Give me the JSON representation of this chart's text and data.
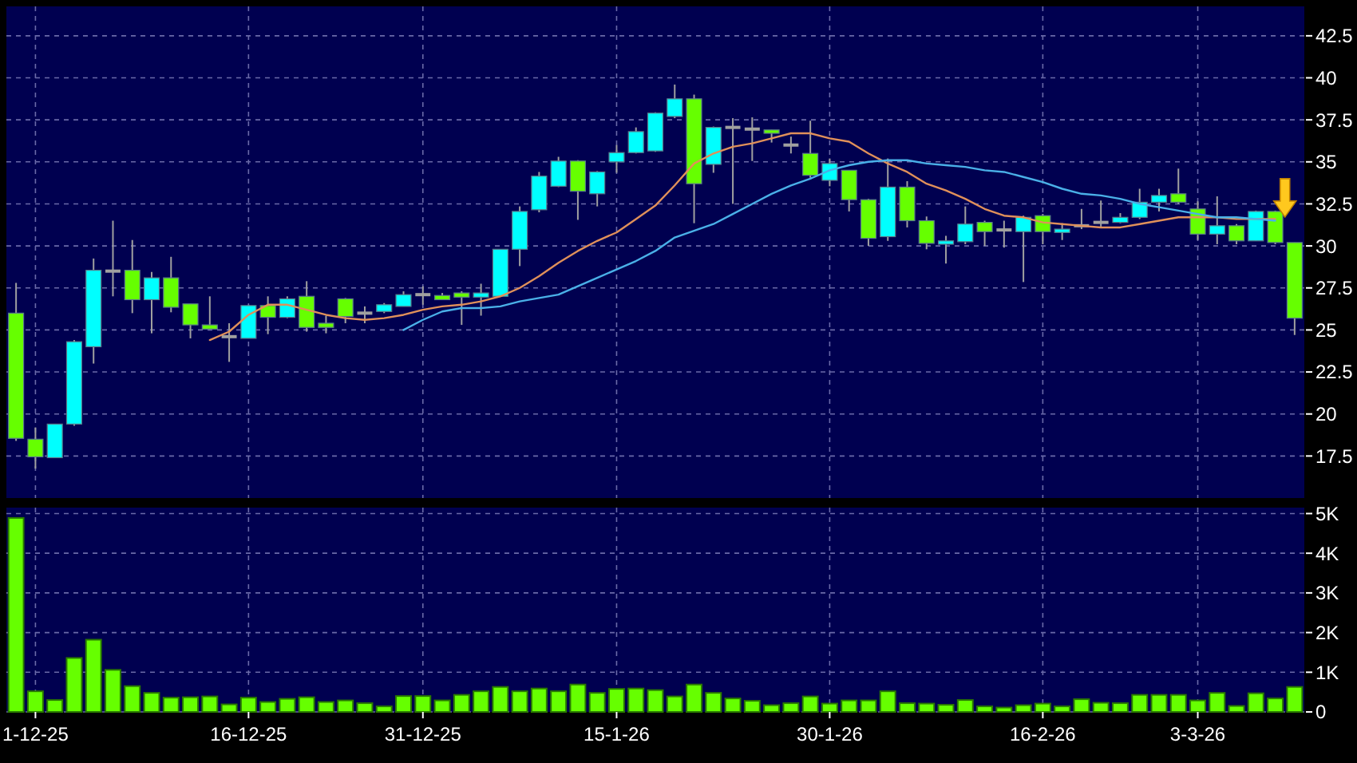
{
  "chart_data": [
    {
      "type": "candlestick",
      "categories": [
        null,
        null,
        null,
        null,
        null,
        null,
        null,
        null,
        null,
        null,
        null,
        null,
        null,
        null,
        null,
        null,
        null,
        null,
        null,
        null,
        null,
        null,
        null,
        null,
        null,
        null,
        null,
        null,
        null,
        null,
        null,
        null,
        null,
        null,
        null,
        null,
        null,
        null,
        null,
        null,
        null,
        null,
        null,
        null,
        null,
        null,
        null,
        null,
        null,
        null,
        null,
        null,
        null,
        null,
        null,
        null,
        null,
        null,
        null,
        null,
        null,
        null,
        null,
        null,
        null,
        null,
        null
      ],
      "ohlc": [
        [
          26.0,
          27.8,
          18.4,
          18.55
        ],
        [
          18.5,
          19.2,
          16.75,
          17.45
        ],
        [
          17.4,
          19.4,
          17.4,
          19.4
        ],
        [
          19.4,
          24.4,
          19.3,
          24.3
        ],
        [
          24.0,
          29.25,
          23.0,
          28.55
        ],
        [
          28.5,
          31.5,
          27.0,
          28.5
        ],
        [
          28.55,
          30.35,
          26.0,
          26.8
        ],
        [
          26.8,
          28.45,
          24.8,
          28.1
        ],
        [
          28.1,
          29.35,
          26.05,
          26.35
        ],
        [
          26.55,
          26.55,
          24.5,
          25.3
        ],
        [
          25.3,
          27.0,
          25.0,
          25.05
        ],
        [
          24.6,
          25.4,
          23.1,
          24.6
        ],
        [
          24.5,
          26.5,
          24.5,
          26.45
        ],
        [
          26.45,
          27.0,
          24.75,
          25.75
        ],
        [
          25.75,
          27.0,
          25.7,
          26.85
        ],
        [
          27.0,
          27.9,
          24.9,
          25.15
        ],
        [
          25.4,
          25.85,
          24.8,
          25.15
        ],
        [
          26.85,
          26.9,
          25.4,
          25.8
        ],
        [
          26.0,
          26.4,
          25.4,
          26.0
        ],
        [
          26.1,
          26.6,
          26.0,
          26.5
        ],
        [
          26.4,
          27.3,
          26.4,
          27.1
        ],
        [
          27.1,
          27.6,
          26.5,
          27.1
        ],
        [
          27.05,
          27.2,
          26.8,
          26.8
        ],
        [
          27.2,
          27.3,
          25.3,
          26.95
        ],
        [
          26.95,
          27.75,
          25.85,
          27.2
        ],
        [
          27.0,
          29.8,
          27.0,
          29.8
        ],
        [
          29.8,
          32.35,
          28.8,
          32.05
        ],
        [
          32.15,
          34.4,
          32.0,
          34.15
        ],
        [
          33.55,
          35.3,
          33.5,
          35.05
        ],
        [
          35.05,
          35.1,
          31.55,
          33.25
        ],
        [
          33.1,
          34.45,
          32.35,
          34.4
        ],
        [
          35.0,
          36.0,
          34.35,
          35.55
        ],
        [
          35.55,
          37.05,
          35.5,
          36.8
        ],
        [
          35.65,
          37.95,
          35.6,
          37.9
        ],
        [
          37.7,
          39.6,
          37.6,
          38.75
        ],
        [
          38.75,
          39.0,
          31.35,
          33.7
        ],
        [
          34.85,
          37.1,
          34.35,
          37.05
        ],
        [
          37.05,
          37.6,
          32.5,
          37.05
        ],
        [
          36.95,
          37.65,
          35.05,
          36.95
        ],
        [
          36.9,
          36.9,
          36.15,
          36.7
        ],
        [
          36.0,
          36.5,
          35.5,
          36.0
        ],
        [
          35.5,
          37.45,
          34.05,
          34.2
        ],
        [
          33.9,
          35.2,
          33.55,
          34.9
        ],
        [
          34.5,
          34.5,
          32.05,
          32.75
        ],
        [
          32.75,
          32.8,
          30.0,
          30.45
        ],
        [
          30.55,
          35.2,
          30.3,
          33.5
        ],
        [
          33.5,
          33.85,
          31.1,
          31.5
        ],
        [
          31.5,
          31.75,
          29.8,
          30.15
        ],
        [
          30.1,
          30.6,
          28.95,
          30.3
        ],
        [
          30.25,
          32.35,
          30.1,
          31.3
        ],
        [
          31.4,
          31.5,
          30.0,
          30.85
        ],
        [
          30.95,
          31.5,
          29.9,
          30.95
        ],
        [
          30.85,
          31.8,
          27.85,
          31.7
        ],
        [
          31.8,
          31.9,
          30.1,
          30.85
        ],
        [
          30.8,
          31.35,
          30.35,
          31.0
        ],
        [
          31.2,
          32.2,
          31.0,
          31.2
        ],
        [
          31.4,
          32.7,
          31.1,
          31.4
        ],
        [
          31.4,
          31.95,
          31.35,
          31.7
        ],
        [
          31.7,
          33.4,
          31.6,
          32.6
        ],
        [
          32.6,
          33.4,
          32.05,
          33.0
        ],
        [
          33.1,
          34.6,
          32.5,
          32.6
        ],
        [
          32.2,
          32.65,
          30.35,
          30.7
        ],
        [
          30.7,
          32.95,
          30.1,
          31.2
        ],
        [
          31.2,
          31.3,
          30.1,
          30.3
        ],
        [
          30.3,
          32.1,
          30.3,
          32.05
        ],
        [
          32.05,
          32.1,
          30.1,
          30.2
        ],
        [
          30.2,
          30.2,
          24.7,
          25.7
        ]
      ],
      "colors": [
        "#66ff00",
        "#66ff00",
        "#00ffff",
        "#00ffff",
        "#00ffff",
        "#a0a0a0",
        "#66ff00",
        "#00ffff",
        "#66ff00",
        "#66ff00",
        "#66ff00",
        "#a0a0a0",
        "#00ffff",
        "#66ff00",
        "#00ffff",
        "#66ff00",
        "#66ff00",
        "#66ff00",
        "#a0a0a0",
        "#00ffff",
        "#00ffff",
        "#a0a0a0",
        "#66ff00",
        "#66ff00",
        "#00ffff",
        "#00ffff",
        "#00ffff",
        "#00ffff",
        "#00ffff",
        "#66ff00",
        "#00ffff",
        "#00ffff",
        "#00ffff",
        "#00ffff",
        "#00ffff",
        "#66ff00",
        "#00ffff",
        "#a0a0a0",
        "#a0a0a0",
        "#66ff00",
        "#a0a0a0",
        "#66ff00",
        "#00ffff",
        "#66ff00",
        "#66ff00",
        "#00ffff",
        "#66ff00",
        "#66ff00",
        "#00ffff",
        "#00ffff",
        "#66ff00",
        "#a0a0a0",
        "#00ffff",
        "#66ff00",
        "#00ffff",
        "#a0a0a0",
        "#a0a0a0",
        "#00ffff",
        "#00ffff",
        "#00ffff",
        "#66ff00",
        "#66ff00",
        "#00ffff",
        "#66ff00",
        "#00ffff",
        "#66ff00",
        "#66ff00"
      ],
      "series": [
        {
          "type": "line",
          "color": "#e0905a",
          "values": [
            null,
            null,
            null,
            null,
            null,
            null,
            null,
            null,
            null,
            null,
            24.4,
            24.9,
            25.9,
            26.5,
            26.5,
            26.2,
            25.9,
            25.7,
            25.6,
            25.7,
            25.9,
            26.2,
            26.4,
            26.5,
            26.7,
            27.0,
            27.5,
            28.2,
            29.0,
            29.7,
            30.3,
            30.8,
            31.6,
            32.4,
            33.6,
            34.9,
            35.5,
            35.9,
            36.1,
            36.4,
            36.7,
            36.7,
            36.4,
            36.2,
            35.5,
            34.9,
            34.4,
            33.7,
            33.3,
            32.8,
            32.2,
            31.8,
            31.7,
            31.4,
            31.3,
            31.2,
            31.1,
            31.1,
            31.3,
            31.5,
            31.7,
            31.7,
            31.7,
            31.6,
            31.6,
            31.6,
            null
          ]
        },
        {
          "type": "line",
          "color": "#4ab0e8",
          "values": [
            null,
            null,
            null,
            null,
            null,
            null,
            null,
            null,
            null,
            null,
            null,
            null,
            null,
            null,
            null,
            null,
            null,
            null,
            null,
            null,
            25.0,
            25.6,
            26.1,
            26.3,
            26.3,
            26.4,
            26.7,
            26.9,
            27.1,
            27.6,
            28.1,
            28.6,
            29.1,
            29.7,
            30.5,
            30.9,
            31.3,
            31.9,
            32.5,
            33.1,
            33.6,
            34.0,
            34.5,
            34.8,
            35.0,
            35.1,
            35.1,
            34.9,
            34.8,
            34.7,
            34.5,
            34.4,
            34.1,
            33.8,
            33.4,
            33.1,
            33.0,
            32.8,
            32.5,
            32.3,
            32.1,
            31.9,
            31.7,
            31.7,
            31.6,
            31.5,
            null
          ]
        }
      ],
      "ylim": [
        15,
        44.25
      ],
      "yticks": [
        17.5,
        20,
        22.5,
        25,
        27.5,
        30,
        32.5,
        35,
        37.5,
        40,
        42.5
      ],
      "grid": true,
      "tick_labels": "y"
    },
    {
      "type": "bar",
      "categories": [
        null,
        "1-12-25",
        null,
        null,
        null,
        null,
        null,
        null,
        null,
        null,
        null,
        null,
        "16-12-25",
        null,
        null,
        null,
        null,
        null,
        null,
        null,
        null,
        "31-12-25",
        null,
        null,
        null,
        null,
        null,
        null,
        null,
        null,
        null,
        "15-1-26",
        null,
        null,
        null,
        null,
        null,
        null,
        null,
        null,
        null,
        null,
        "30-1-26",
        null,
        null,
        null,
        null,
        null,
        null,
        null,
        null,
        null,
        null,
        "16-2-26",
        null,
        null,
        null,
        null,
        null,
        null,
        null,
        "3-3-26",
        null,
        null,
        null,
        null,
        null
      ],
      "values": [
        4890,
        520,
        300,
        1360,
        1820,
        1060,
        650,
        480,
        360,
        370,
        390,
        190,
        360,
        250,
        330,
        370,
        250,
        290,
        220,
        140,
        400,
        400,
        290,
        430,
        520,
        630,
        520,
        590,
        520,
        690,
        480,
        580,
        590,
        550,
        390,
        690,
        480,
        340,
        280,
        170,
        220,
        390,
        210,
        290,
        290,
        520,
        220,
        210,
        180,
        300,
        140,
        110,
        170,
        210,
        140,
        320,
        230,
        220,
        430,
        430,
        430,
        290,
        480,
        150,
        470,
        340,
        630
      ],
      "color": "#66ff00",
      "ylim": [
        0,
        5150
      ],
      "yticks": [
        0,
        {
          "value": 1000,
          "label": "1K"
        },
        {
          "value": 2000,
          "label": "2K"
        },
        {
          "value": 3000,
          "label": "3K"
        },
        {
          "value": 4000,
          "label": "4K"
        },
        {
          "value": 5000,
          "label": "5K"
        }
      ],
      "grid": true
    }
  ]
}
